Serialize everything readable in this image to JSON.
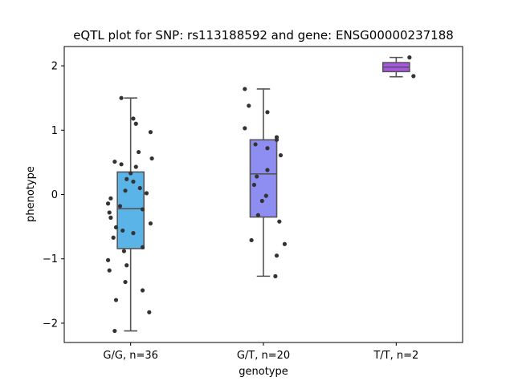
{
  "chart_data": {
    "type": "box",
    "title": "eQTL plot for SNP: rs113188592 and gene: ENSG00000237188",
    "xlabel": "genotype",
    "ylabel": "phenotype",
    "ylim": [
      -2.3,
      2.3
    ],
    "yticks": [
      -2,
      -1,
      0,
      1,
      2
    ],
    "yticklabels": [
      "−2",
      "−1",
      "0",
      "1",
      "2"
    ],
    "grid": false,
    "groups": [
      {
        "label": "G/G, n=36",
        "color": "#5ab4e8",
        "q1": -0.84,
        "median": -0.22,
        "q3": 0.35,
        "whisker_low": -2.12,
        "whisker_high": 1.5,
        "points": [
          1.5,
          1.18,
          1.1,
          0.97,
          0.66,
          0.56,
          0.51,
          0.47,
          0.43,
          0.33,
          0.24,
          0.2,
          0.1,
          0.06,
          0.02,
          -0.06,
          -0.14,
          -0.18,
          -0.23,
          -0.28,
          -0.36,
          -0.45,
          -0.51,
          -0.56,
          -0.6,
          -0.67,
          -0.82,
          -0.88,
          -1.02,
          -1.1,
          -1.18,
          -1.36,
          -1.49,
          -1.64,
          -1.83,
          -2.12
        ],
        "jitter": [
          -0.07,
          0.02,
          0.04,
          0.15,
          0.06,
          0.16,
          -0.12,
          -0.07,
          0.04,
          0.0,
          -0.03,
          0.02,
          0.07,
          -0.04,
          0.12,
          -0.15,
          -0.17,
          -0.08,
          0.09,
          -0.16,
          -0.15,
          0.15,
          -0.11,
          -0.06,
          0.02,
          -0.13,
          0.09,
          -0.05,
          -0.17,
          -0.03,
          -0.16,
          -0.04,
          0.09,
          -0.11,
          0.14,
          -0.12
        ]
      },
      {
        "label": "G/T, n=20",
        "color": "#8e8ef2",
        "q1": -0.35,
        "median": 0.32,
        "q3": 0.85,
        "whisker_low": -1.27,
        "whisker_high": 1.64,
        "points": [
          1.64,
          1.38,
          1.28,
          1.03,
          0.89,
          0.85,
          0.78,
          0.72,
          0.61,
          0.38,
          0.28,
          0.15,
          -0.02,
          -0.1,
          -0.32,
          -0.42,
          -0.71,
          -0.77,
          -0.95,
          -1.27
        ],
        "jitter": [
          -0.14,
          -0.11,
          0.03,
          -0.14,
          0.1,
          0.1,
          -0.06,
          0.03,
          0.13,
          0.03,
          -0.05,
          -0.07,
          0.02,
          -0.01,
          -0.04,
          0.12,
          -0.09,
          0.16,
          0.1,
          0.09
        ]
      },
      {
        "label": "T/T, n=2",
        "color": "#aa55e8",
        "q1": 1.91,
        "median": 1.98,
        "q3": 2.05,
        "whisker_low": 1.83,
        "whisker_high": 2.13,
        "points": [
          2.13,
          1.84
        ],
        "jitter": [
          0.1,
          0.13
        ]
      }
    ]
  }
}
